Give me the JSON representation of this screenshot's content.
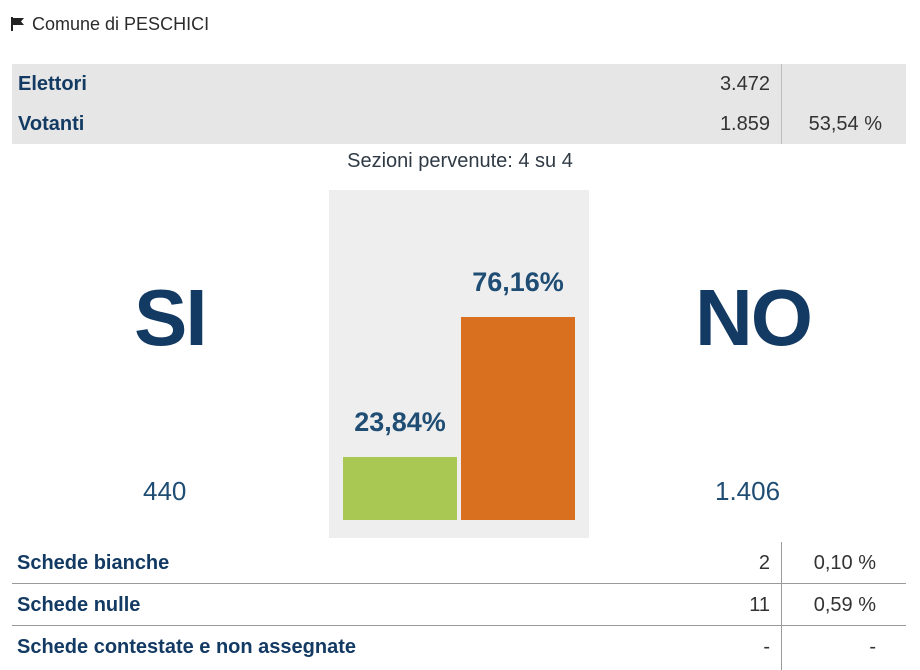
{
  "header": {
    "title": "Comune di PESCHICI",
    "icon": "flag-icon"
  },
  "summary": {
    "elettori": {
      "label": "Elettori",
      "value": "3.472"
    },
    "votanti": {
      "label": "Votanti",
      "value": "1.859",
      "percent": "53,54 %"
    }
  },
  "sections_text": "Sezioni pervenute: 4 su 4",
  "results": {
    "si": {
      "label": "SI",
      "count": "440",
      "percent_label": "23,84%",
      "percent": 23.84,
      "color": "#a8c753"
    },
    "no": {
      "label": "NO",
      "count": "1.406",
      "percent_label": "76,16%",
      "percent": 76.16,
      "color": "#d8701f"
    }
  },
  "chart_data": {
    "type": "bar",
    "categories": [
      "SI",
      "NO"
    ],
    "values": [
      23.84,
      76.16
    ],
    "ylim": [
      0,
      100
    ],
    "colors": [
      "#a8c753",
      "#d8701f"
    ]
  },
  "bottom_rows": [
    {
      "label": "Schede bianche",
      "value": "2",
      "percent": "0,10 %"
    },
    {
      "label": "Schede nulle",
      "value": "11",
      "percent": "0,59 %"
    },
    {
      "label": "Schede contestate e non assegnate",
      "value": "-",
      "percent": "-"
    }
  ]
}
